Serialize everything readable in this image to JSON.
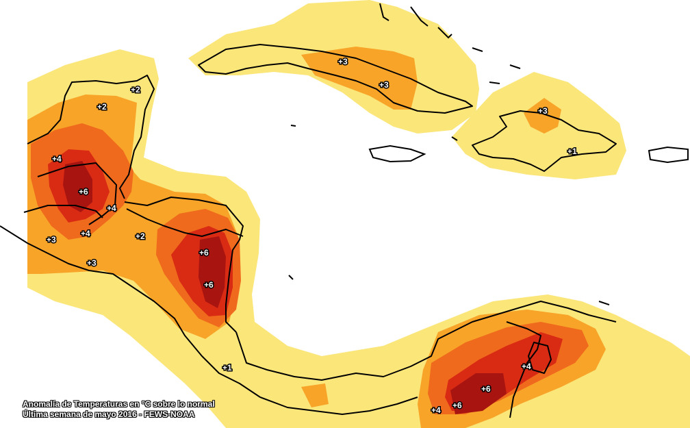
{
  "caption": {
    "line1": "Anomalía de Temperaturas en °C sobre lo normal",
    "line2": "Última semana de mayo 2016 - FEWS-NOAA"
  },
  "colors": {
    "band_1": "#fbe67a",
    "band_2": "#f7a428",
    "band_3": "#ef6a1c",
    "band_4": "#d92a14",
    "band_5": "#a81410",
    "ocean": "#ffffff",
    "border": "#000000",
    "admin_lines": "#9a9a9a"
  },
  "labels": [
    {
      "id": "yucatan-n",
      "text": "+2"
    },
    {
      "id": "yucatan-c",
      "text": "+2"
    },
    {
      "id": "chiapas",
      "text": "+4"
    },
    {
      "id": "guatemala-c",
      "text": "+6"
    },
    {
      "id": "guatemala-e",
      "text": "+4"
    },
    {
      "id": "pacific-w",
      "text": "+3"
    },
    {
      "id": "guatemala-s",
      "text": "+4"
    },
    {
      "id": "honduras-w",
      "text": "+2"
    },
    {
      "id": "elsalvador",
      "text": "+3"
    },
    {
      "id": "honduras-e",
      "text": "+6"
    },
    {
      "id": "nicaragua-n",
      "text": "+6"
    },
    {
      "id": "cuba-w",
      "text": "+3"
    },
    {
      "id": "cuba-e",
      "text": "+3"
    },
    {
      "id": "hispaniola-n",
      "text": "+3"
    },
    {
      "id": "hispaniola-s",
      "text": "+1"
    },
    {
      "id": "costarica",
      "text": "+1"
    },
    {
      "id": "colombia-w",
      "text": "+4"
    },
    {
      "id": "colombia-c",
      "text": "+6"
    },
    {
      "id": "colombia-e",
      "text": "+6"
    },
    {
      "id": "venezuela",
      "text": "+4"
    }
  ]
}
